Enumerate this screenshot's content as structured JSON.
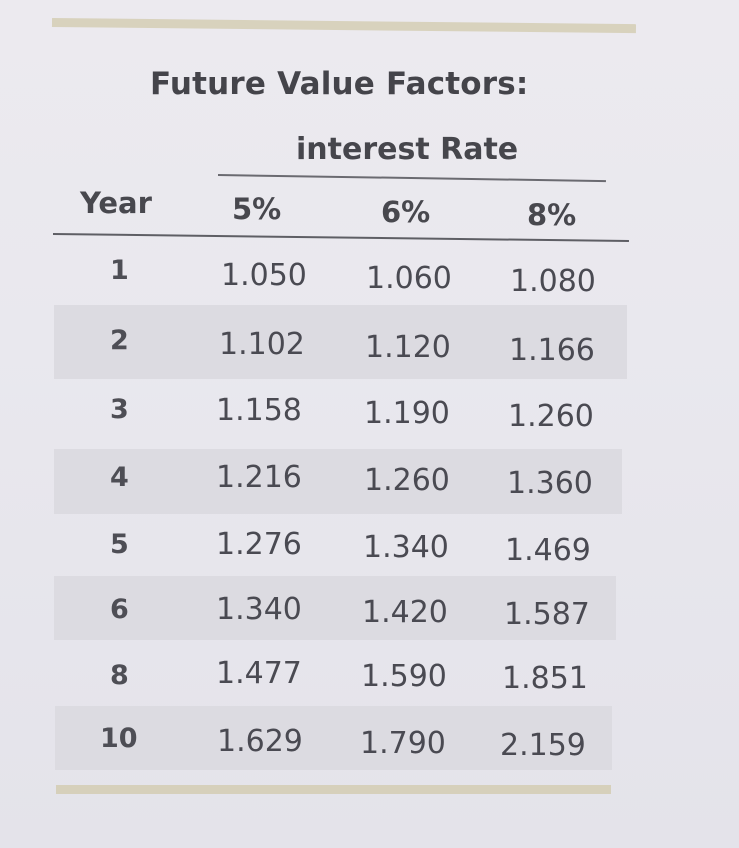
{
  "table": {
    "title": "Future Value Factors:",
    "group_header": "interest Rate",
    "columns": [
      "Year",
      "5%",
      "6%",
      "8%"
    ],
    "rows": [
      {
        "year": "1",
        "values": [
          "1.050",
          "1.060",
          "1.080"
        ]
      },
      {
        "year": "2",
        "values": [
          "1.102",
          "1.120",
          "1.166"
        ]
      },
      {
        "year": "3",
        "values": [
          "1.158",
          "1.190",
          "1.260"
        ]
      },
      {
        "year": "4",
        "values": [
          "1.216",
          "1.260",
          "1.360"
        ]
      },
      {
        "year": "5",
        "values": [
          "1.276",
          "1.340",
          "1.469"
        ]
      },
      {
        "year": "6",
        "values": [
          "1.340",
          "1.420",
          "1.587"
        ]
      },
      {
        "year": "8",
        "values": [
          "1.477",
          "1.590",
          "1.851"
        ]
      },
      {
        "year": "10",
        "values": [
          "1.629",
          "1.790",
          "2.159"
        ]
      }
    ]
  }
}
